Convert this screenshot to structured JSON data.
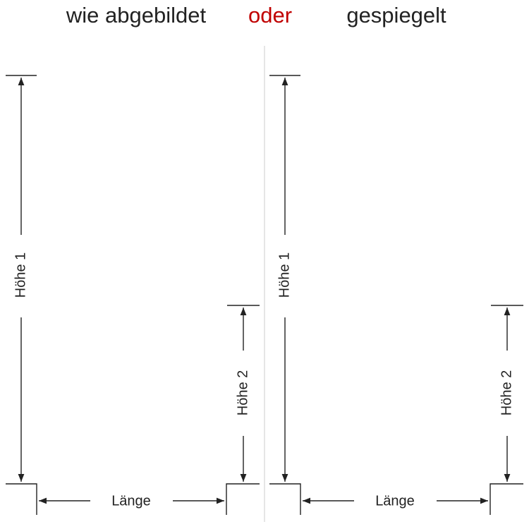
{
  "header": {
    "left": "wie abgebildet",
    "middle": "oder",
    "right": "gespiegelt"
  },
  "panels": [
    {
      "height1": "Höhe 1",
      "height2": "Höhe 2",
      "length": "Länge"
    },
    {
      "height1": "Höhe 1",
      "height2": "Höhe 2",
      "length": "Länge"
    }
  ]
}
